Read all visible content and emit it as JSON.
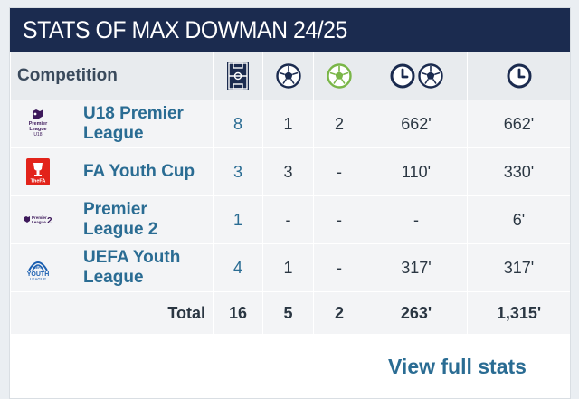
{
  "header": {
    "title": "STATS OF MAX DOWMAN 24/25"
  },
  "table": {
    "competition_header": "Competition",
    "column_icons": [
      "pitch-icon",
      "ball-icon",
      "ball-green-icon",
      "clock-ball-icon",
      "clock-icon"
    ],
    "rows": [
      {
        "name": "U18 Premier League",
        "logo": "premier-league-u18-logo",
        "logo_text": "Premier League U18",
        "apps": "8",
        "goals": "1",
        "assists": "2",
        "mins_per_goal": "662'",
        "minutes": "662'"
      },
      {
        "name": "FA Youth Cup",
        "logo": "fa-youth-cup-logo",
        "logo_text": "TheFA",
        "apps": "3",
        "goals": "3",
        "assists": "-",
        "mins_per_goal": "110'",
        "minutes": "330'"
      },
      {
        "name": "Premier League 2",
        "logo": "premier-league-2-logo",
        "logo_text": "Premier League 2",
        "apps": "1",
        "goals": "-",
        "assists": "-",
        "mins_per_goal": "-",
        "minutes": "6'"
      },
      {
        "name": "UEFA Youth League",
        "logo": "uefa-youth-league-logo",
        "logo_text": "UEFA YOUTH LEAGUE",
        "apps": "4",
        "goals": "1",
        "assists": "-",
        "mins_per_goal": "317'",
        "minutes": "317'"
      }
    ],
    "total": {
      "label": "Total",
      "apps": "16",
      "goals": "5",
      "assists": "2",
      "mins_per_goal": "263'",
      "minutes": "1,315'"
    }
  },
  "footer": {
    "view_full_stats": "View full stats"
  },
  "colors": {
    "header_bg": "#1b2b4f",
    "link": "#2a6c93",
    "icon_dark": "#1b2b4f",
    "icon_green": "#7ab648"
  }
}
